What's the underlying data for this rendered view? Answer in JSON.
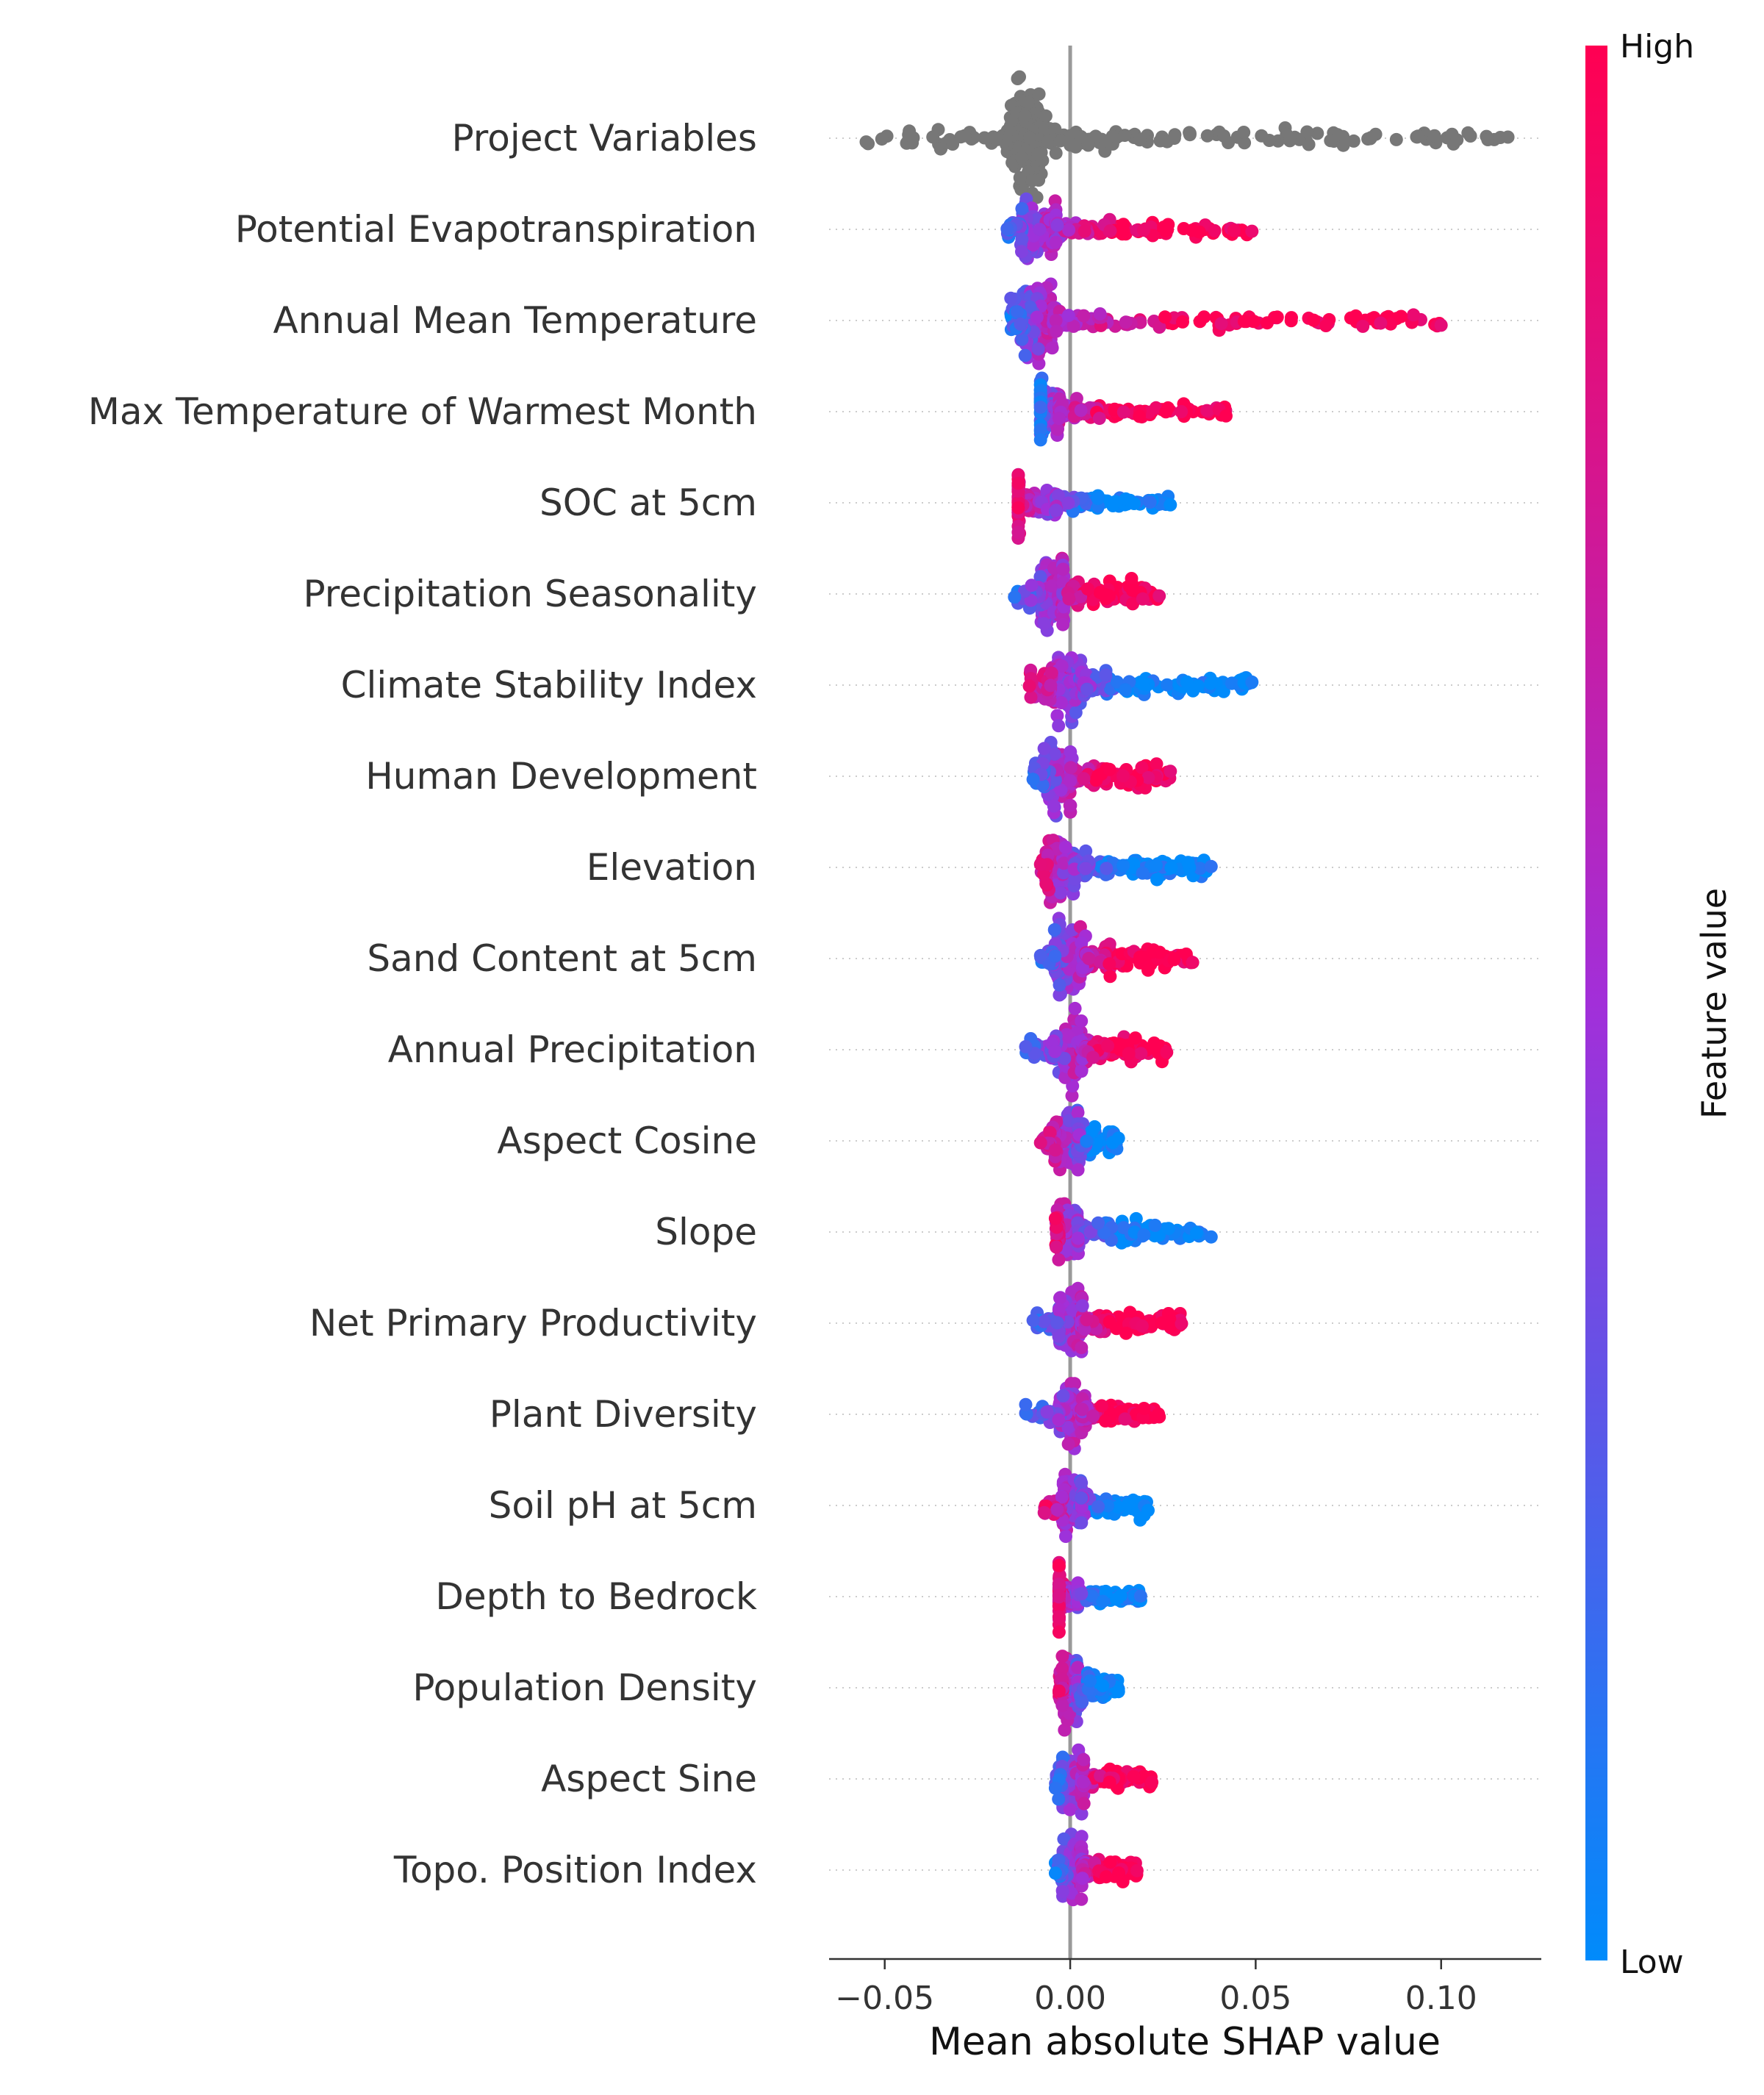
{
  "chart_data": {
    "type": "scatter",
    "subtype": "shap-beeswarm",
    "xlabel": "Mean absolute SHAP value",
    "xlim": [
      -0.065,
      0.127
    ],
    "xticks": [
      -0.05,
      0.0,
      0.05,
      0.1
    ],
    "xtick_labels": [
      "−0.05",
      "0.00",
      "0.05",
      "0.10"
    ],
    "zero_line": 0.0,
    "grid": "dotted horizontal guide per feature",
    "legend": "colorbar right",
    "colorbar": {
      "title": "Feature value",
      "high_label": "High",
      "low_label": "Low",
      "high_color": "#ff0052",
      "mid_color": "#a22fd9",
      "low_color": "#008bfb"
    },
    "neutral_color": "#777777",
    "features": [
      {
        "name": "Project Variables",
        "min": -0.055,
        "max": 0.118,
        "core": [
          -0.017,
          -0.007
        ],
        "color_mode": "neutral",
        "spread": 0.7
      },
      {
        "name": "Potential Evapotranspiration",
        "min": -0.017,
        "max": 0.049,
        "core": [
          -0.013,
          -0.004
        ],
        "color_mode": "pos_high",
        "spread": 0.5
      },
      {
        "name": "Annual Mean Temperature",
        "min": -0.016,
        "max": 0.1,
        "core": [
          -0.013,
          -0.005
        ],
        "color_mode": "pos_high",
        "spread": 0.5
      },
      {
        "name": "Max Temperature of Warmest Month",
        "min": -0.008,
        "max": 0.042,
        "core": [
          -0.008,
          -0.003
        ],
        "color_mode": "pos_high",
        "spread": 0.55
      },
      {
        "name": "SOC at 5cm",
        "min": -0.014,
        "max": 0.027,
        "core": [
          -0.014,
          -0.004
        ],
        "color_mode": "neg_high",
        "spread": 0.45
      },
      {
        "name": "Precipitation Seasonality",
        "min": -0.015,
        "max": 0.024,
        "core": [
          -0.008,
          -0.002
        ],
        "color_mode": "pos_high",
        "spread": 0.55
      },
      {
        "name": "Climate Stability Index",
        "min": -0.011,
        "max": 0.049,
        "core": [
          -0.005,
          0.003
        ],
        "color_mode": "neg_high",
        "spread": 0.5
      },
      {
        "name": "Human Development",
        "min": -0.01,
        "max": 0.027,
        "core": [
          -0.007,
          0.0
        ],
        "color_mode": "pos_high",
        "spread": 0.55
      },
      {
        "name": "Elevation",
        "min": -0.008,
        "max": 0.038,
        "core": [
          -0.006,
          0.001
        ],
        "color_mode": "neg_high",
        "spread": 0.5
      },
      {
        "name": "Sand Content at 5cm",
        "min": -0.008,
        "max": 0.033,
        "core": [
          -0.004,
          0.003
        ],
        "color_mode": "pos_high",
        "spread": 0.5
      },
      {
        "name": "Annual Precipitation",
        "min": -0.012,
        "max": 0.026,
        "core": [
          -0.004,
          0.003
        ],
        "color_mode": "pos_high",
        "spread": 0.45
      },
      {
        "name": "Aspect Cosine",
        "min": -0.008,
        "max": 0.013,
        "core": [
          -0.004,
          0.002
        ],
        "color_mode": "neg_high",
        "spread": 0.45
      },
      {
        "name": "Slope",
        "min": -0.004,
        "max": 0.038,
        "core": [
          -0.003,
          0.002
        ],
        "color_mode": "neg_high",
        "spread": 0.45
      },
      {
        "name": "Net Primary Productivity",
        "min": -0.01,
        "max": 0.03,
        "core": [
          -0.003,
          0.003
        ],
        "color_mode": "pos_high",
        "spread": 0.45
      },
      {
        "name": "Plant Diversity",
        "min": -0.012,
        "max": 0.024,
        "core": [
          -0.003,
          0.003
        ],
        "color_mode": "pos_high",
        "spread": 0.45
      },
      {
        "name": "Soil pH at 5cm",
        "min": -0.007,
        "max": 0.021,
        "core": [
          -0.002,
          0.003
        ],
        "color_mode": "neg_high",
        "spread": 0.4
      },
      {
        "name": "Depth to Bedrock",
        "min": -0.003,
        "max": 0.019,
        "core": [
          -0.003,
          0.002
        ],
        "color_mode": "neg_high",
        "spread": 0.45
      },
      {
        "name": "Population Density",
        "min": -0.003,
        "max": 0.013,
        "core": [
          -0.002,
          0.002
        ],
        "color_mode": "neg_high",
        "spread": 0.45
      },
      {
        "name": "Aspect Sine",
        "min": -0.004,
        "max": 0.022,
        "core": [
          -0.002,
          0.003
        ],
        "color_mode": "pos_high",
        "spread": 0.45
      },
      {
        "name": "Topo. Position Index",
        "min": -0.004,
        "max": 0.018,
        "core": [
          -0.002,
          0.003
        ],
        "color_mode": "pos_high",
        "spread": 0.45
      }
    ]
  }
}
